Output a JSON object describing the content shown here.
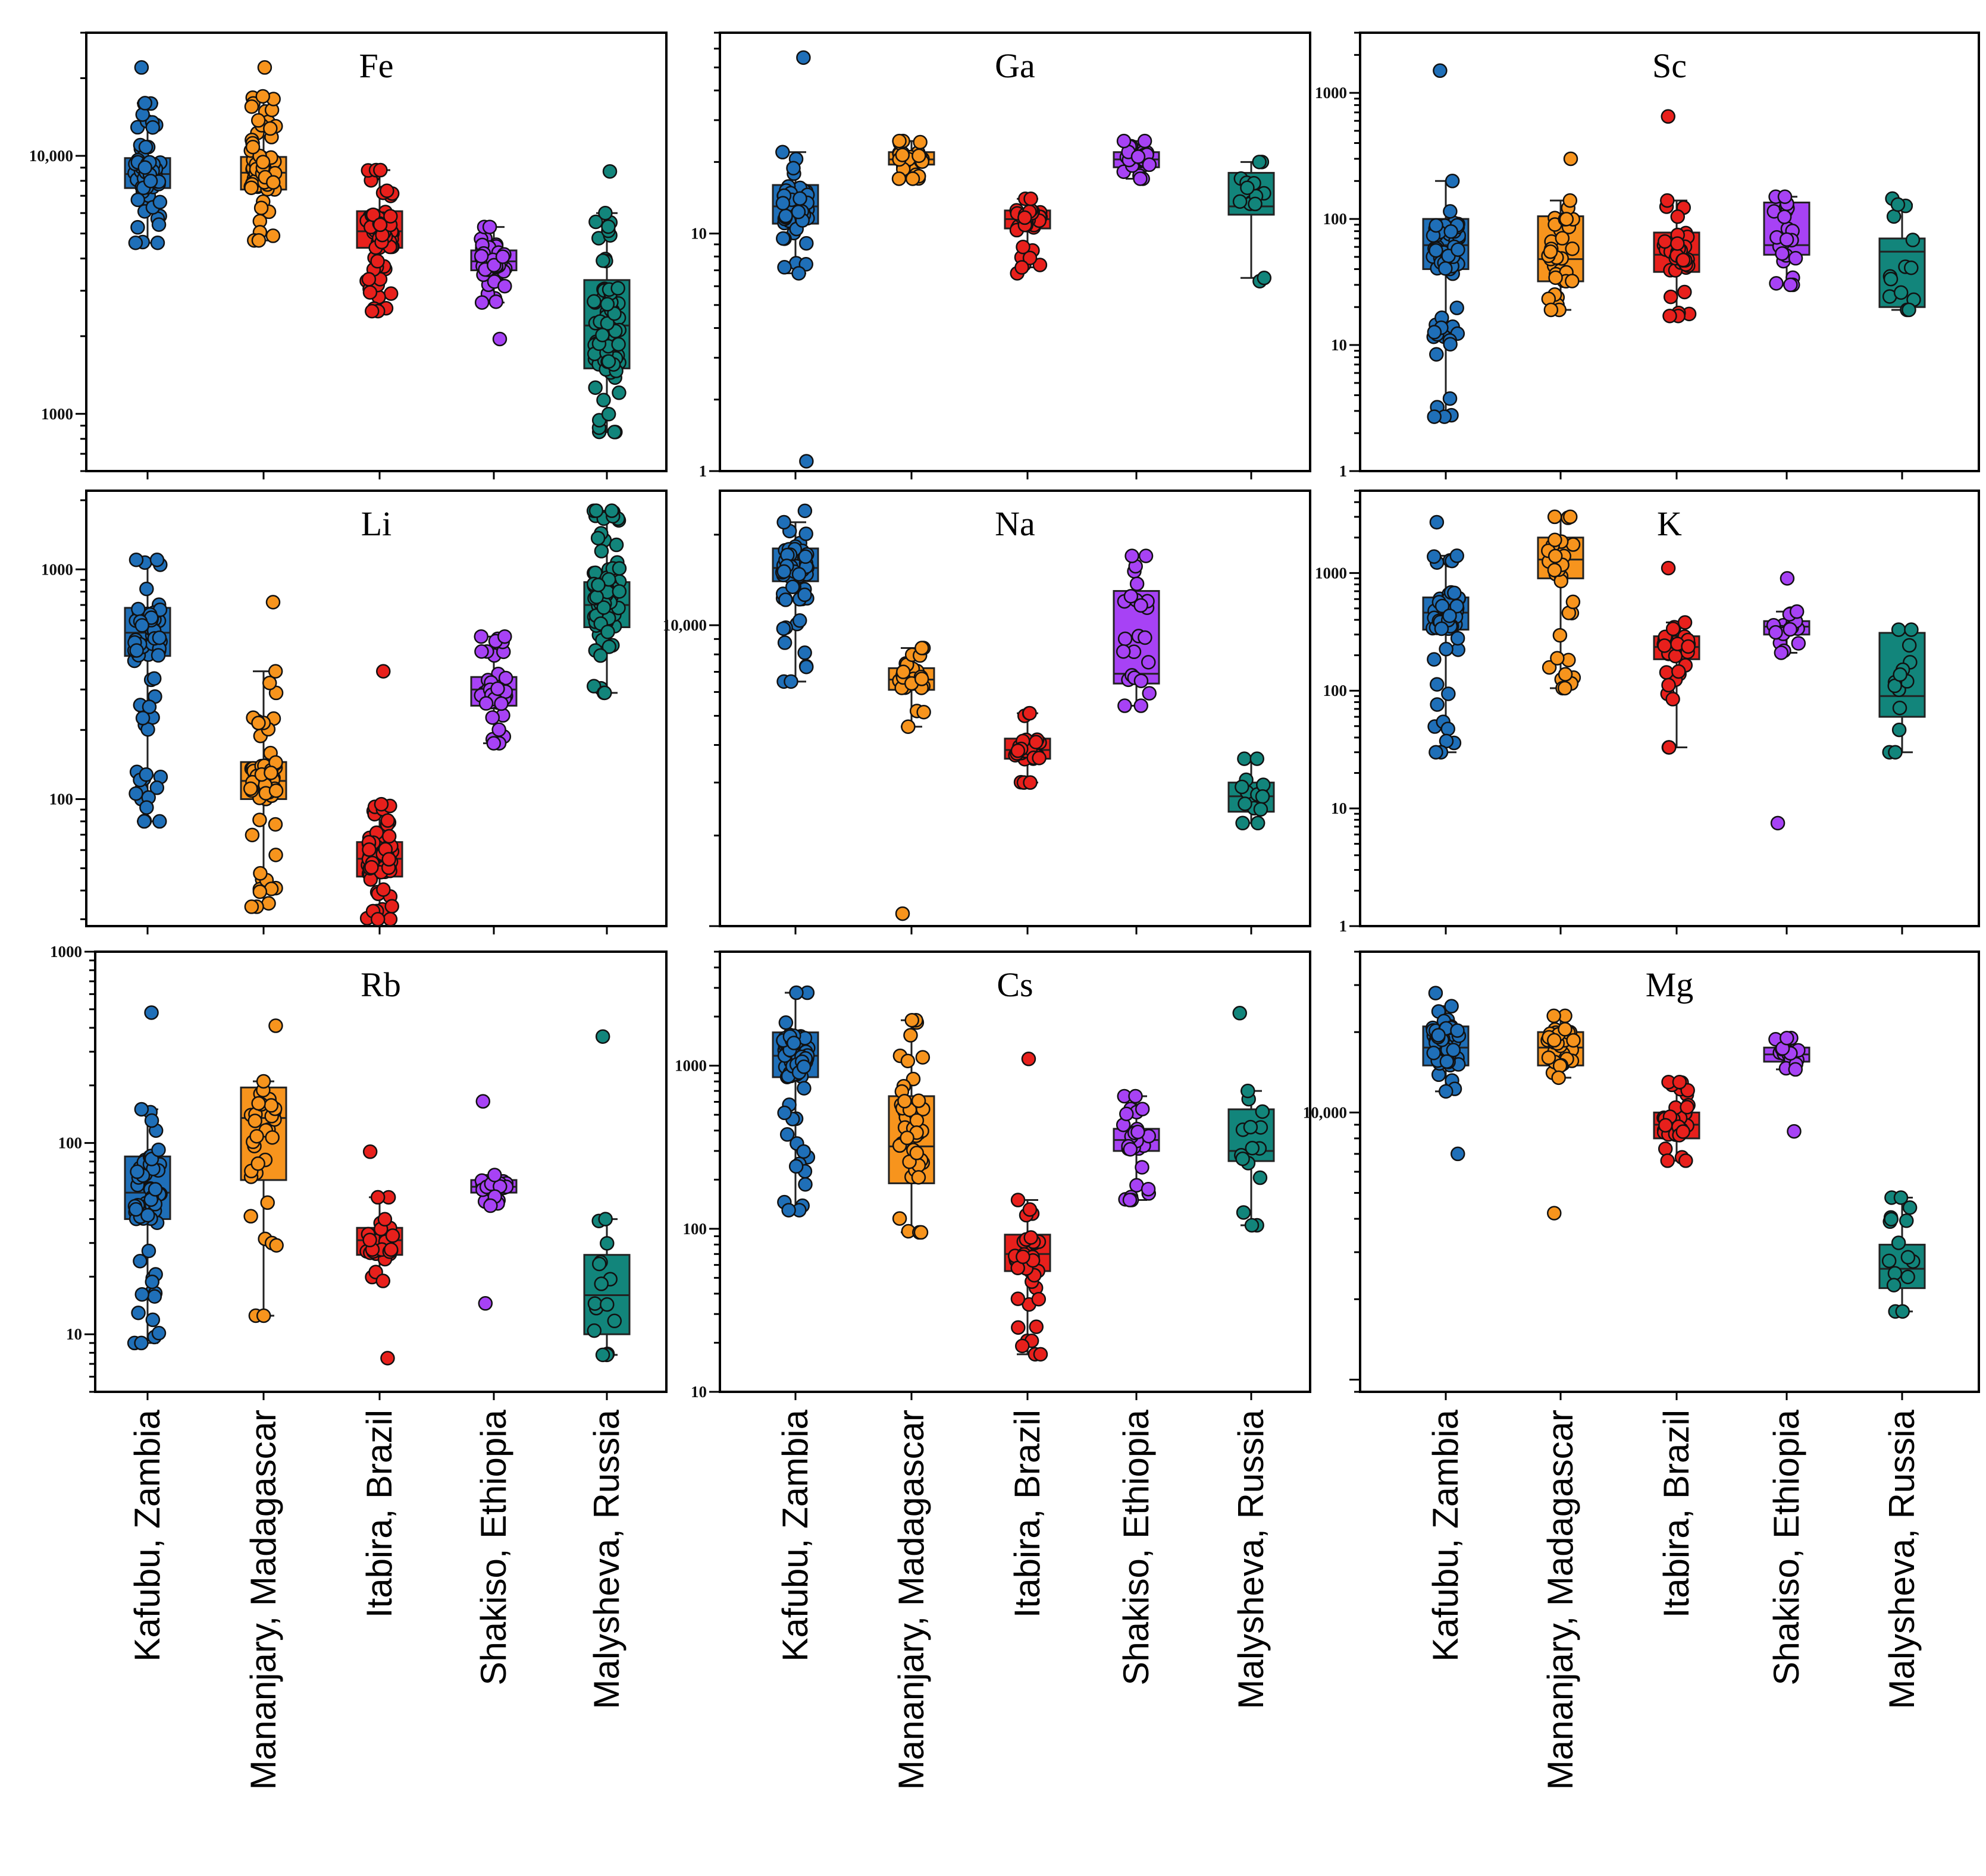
{
  "figure_title": "",
  "categories": [
    "Kafubu, Zambia",
    "Mananjary, Madagascar",
    "Itabira, Brazil",
    "Shakiso, Ethiopia",
    "Malysheva, Russia"
  ],
  "colors": {
    "Kafubu, Zambia": "#1f6fb8",
    "Mananjary, Madagascar": "#f7941d",
    "Itabira, Brazil": "#e8201c",
    "Shakiso, Ethiopia": "#a742f5",
    "Malysheva, Russia": "#12857b"
  },
  "chart_data": [
    {
      "type": "box",
      "title": "Fe",
      "yscale": "log",
      "ylim": [
        600,
        30000
      ],
      "ticks": [
        {
          "value": 1000,
          "label": "1000"
        },
        {
          "value": 10000,
          "label": "10,000"
        }
      ],
      "boxes": [
        {
          "category": "Kafubu, Zambia",
          "q1": 7500,
          "median": 8500,
          "q3": 9800,
          "whisker_low": 4600,
          "whisker_high": 16000,
          "min": 4600,
          "max": 22000,
          "n_points": 70
        },
        {
          "category": "Mananjary, Madagascar",
          "q1": 7400,
          "median": 8600,
          "q3": 9900,
          "whisker_low": 4700,
          "whisker_high": 17000,
          "min": 4700,
          "max": 22000,
          "n_points": 70
        },
        {
          "category": "Itabira, Brazil",
          "q1": 4400,
          "median": 5100,
          "q3": 6100,
          "whisker_low": 2500,
          "whisker_high": 8800,
          "min": 2500,
          "max": 8800,
          "n_points": 70
        },
        {
          "category": "Shakiso, Ethiopia",
          "q1": 3600,
          "median": 3900,
          "q3": 4300,
          "whisker_low": 2700,
          "whisker_high": 5300,
          "min": 1950,
          "max": 5300,
          "n_points": 40
        },
        {
          "category": "Malysheva, Russia",
          "q1": 1500,
          "median": 2200,
          "q3": 3300,
          "whisker_low": 850,
          "whisker_high": 6000,
          "min": 850,
          "max": 8700,
          "n_points": 80
        }
      ]
    },
    {
      "type": "box",
      "title": "Ga",
      "yscale": "log",
      "ylim": [
        1,
        70
      ],
      "ticks": [
        {
          "value": 1,
          "label": "1"
        },
        {
          "value": 10,
          "label": "10"
        }
      ],
      "boxes": [
        {
          "category": "Kafubu, Zambia",
          "q1": 11,
          "median": 13,
          "q3": 16,
          "whisker_low": 6.8,
          "whisker_high": 22,
          "min": 1.1,
          "max": 55,
          "n_points": 50
        },
        {
          "category": "Mananjary, Madagascar",
          "q1": 19.5,
          "median": 20.5,
          "q3": 22,
          "whisker_low": 17,
          "whisker_high": 24.5,
          "min": 17,
          "max": 24.5,
          "n_points": 25
        },
        {
          "category": "Itabira, Brazil",
          "q1": 10.5,
          "median": 11.5,
          "q3": 12.5,
          "whisker_low": 7.2,
          "whisker_high": 14,
          "min": 6.8,
          "max": 14,
          "n_points": 30
        },
        {
          "category": "Shakiso, Ethiopia",
          "q1": 19,
          "median": 20.5,
          "q3": 22,
          "whisker_low": 17,
          "whisker_high": 24.5,
          "min": 17,
          "max": 24.5,
          "n_points": 25
        },
        {
          "category": "Malysheva, Russia",
          "q1": 12,
          "median": 13,
          "q3": 18,
          "whisker_low": 6.5,
          "whisker_high": 20,
          "min": 6.3,
          "max": 20,
          "n_points": 10
        }
      ]
    },
    {
      "type": "box",
      "title": "Sc",
      "yscale": "log",
      "ylim": [
        1,
        3000
      ],
      "ticks": [
        {
          "value": 1,
          "label": "1"
        },
        {
          "value": 10,
          "label": "10"
        },
        {
          "value": 100,
          "label": "100"
        },
        {
          "value": 1000,
          "label": "1000"
        }
      ],
      "boxes": [
        {
          "category": "Kafubu, Zambia",
          "q1": 40,
          "median": 62,
          "q3": 100,
          "whisker_low": 2.7,
          "whisker_high": 200,
          "min": 2.7,
          "max": 1500,
          "n_points": 60
        },
        {
          "category": "Mananjary, Madagascar",
          "q1": 32,
          "median": 48,
          "q3": 105,
          "whisker_low": 19,
          "whisker_high": 140,
          "min": 19,
          "max": 300,
          "n_points": 30
        },
        {
          "category": "Itabira, Brazil",
          "q1": 38,
          "median": 52,
          "q3": 78,
          "whisker_low": 17,
          "whisker_high": 140,
          "min": 17,
          "max": 650,
          "n_points": 35
        },
        {
          "category": "Shakiso, Ethiopia",
          "q1": 52,
          "median": 62,
          "q3": 135,
          "whisker_low": 30,
          "whisker_high": 150,
          "min": 30,
          "max": 150,
          "n_points": 20
        },
        {
          "category": "Malysheva, Russia",
          "q1": 20,
          "median": 55,
          "q3": 70,
          "whisker_low": 19,
          "whisker_high": 130,
          "min": 19,
          "max": 145,
          "n_points": 10
        }
      ]
    },
    {
      "type": "box",
      "title": "Li",
      "yscale": "log",
      "ylim": [
        28,
        2200
      ],
      "ticks": [
        {
          "value": 100,
          "label": "100"
        },
        {
          "value": 1000,
          "label": "1000"
        }
      ],
      "boxes": [
        {
          "category": "Kafubu, Zambia",
          "q1": 420,
          "median": 530,
          "q3": 680,
          "whisker_low": 80,
          "whisker_high": 1100,
          "min": 80,
          "max": 1100,
          "n_points": 70
        },
        {
          "category": "Mananjary, Madagascar",
          "q1": 100,
          "median": 120,
          "q3": 145,
          "whisker_low": 34,
          "whisker_high": 360,
          "min": 34,
          "max": 720,
          "n_points": 60
        },
        {
          "category": "Itabira, Brazil",
          "q1": 46,
          "median": 55,
          "q3": 65,
          "whisker_low": 30,
          "whisker_high": 95,
          "min": 30,
          "max": 360,
          "n_points": 60
        },
        {
          "category": "Shakiso, Ethiopia",
          "q1": 255,
          "median": 300,
          "q3": 340,
          "whisker_low": 175,
          "whisker_high": 510,
          "min": 175,
          "max": 510,
          "n_points": 40
        },
        {
          "category": "Malysheva, Russia",
          "q1": 560,
          "median": 700,
          "q3": 880,
          "whisker_low": 290,
          "whisker_high": 1800,
          "min": 290,
          "max": 1800,
          "n_points": 80
        }
      ]
    },
    {
      "type": "box",
      "title": "Na",
      "yscale": "log",
      "ylim": [
        1000,
        28000
      ],
      "ticks": [
        {
          "value": 10000,
          "label": "10,000"
        }
      ],
      "boxes": [
        {
          "category": "Kafubu, Zambia",
          "q1": 14000,
          "median": 15500,
          "q3": 18000,
          "whisker_low": 6500,
          "whisker_high": 22000,
          "min": 6500,
          "max": 24000,
          "n_points": 60
        },
        {
          "category": "Mananjary, Madagascar",
          "q1": 6100,
          "median": 6600,
          "q3": 7200,
          "whisker_low": 4600,
          "whisker_high": 8400,
          "min": 1100,
          "max": 8400,
          "n_points": 25
        },
        {
          "category": "Itabira, Brazil",
          "q1": 3600,
          "median": 3850,
          "q3": 4200,
          "whisker_low": 3000,
          "whisker_high": 5100,
          "min": 3000,
          "max": 5100,
          "n_points": 30
        },
        {
          "category": "Shakiso, Ethiopia",
          "q1": 6400,
          "median": 6900,
          "q3": 13000,
          "whisker_low": 5400,
          "whisker_high": 17000,
          "min": 5400,
          "max": 17000,
          "n_points": 20
        },
        {
          "category": "Malysheva, Russia",
          "q1": 2400,
          "median": 2700,
          "q3": 3000,
          "whisker_low": 2200,
          "whisker_high": 3600,
          "min": 2200,
          "max": 3600,
          "n_points": 10
        }
      ]
    },
    {
      "type": "box",
      "title": "K",
      "yscale": "log",
      "ylim": [
        1,
        5000
      ],
      "ticks": [
        {
          "value": 1,
          "label": "1"
        },
        {
          "value": 10,
          "label": "10"
        },
        {
          "value": 100,
          "label": "100"
        },
        {
          "value": 1000,
          "label": "1000"
        }
      ],
      "boxes": [
        {
          "category": "Kafubu, Zambia",
          "q1": 330,
          "median": 460,
          "q3": 620,
          "whisker_low": 30,
          "whisker_high": 1400,
          "min": 30,
          "max": 2700,
          "n_points": 60
        },
        {
          "category": "Mananjary, Madagascar",
          "q1": 900,
          "median": 1300,
          "q3": 2000,
          "whisker_low": 105,
          "whisker_high": 3000,
          "min": 105,
          "max": 3000,
          "n_points": 30
        },
        {
          "category": "Itabira, Brazil",
          "q1": 185,
          "median": 235,
          "q3": 290,
          "whisker_low": 33,
          "whisker_high": 380,
          "min": 33,
          "max": 1100,
          "n_points": 30
        },
        {
          "category": "Shakiso, Ethiopia",
          "q1": 300,
          "median": 350,
          "q3": 390,
          "whisker_low": 210,
          "whisker_high": 470,
          "min": 7.5,
          "max": 900,
          "n_points": 20
        },
        {
          "category": "Malysheva, Russia",
          "q1": 60,
          "median": 90,
          "q3": 310,
          "whisker_low": 30,
          "whisker_high": 330,
          "min": 30,
          "max": 330,
          "n_points": 10
        }
      ]
    },
    {
      "type": "box",
      "title": "Rb",
      "yscale": "log",
      "ylim": [
        5,
        1000
      ],
      "ticks": [
        {
          "value": 10,
          "label": "10"
        },
        {
          "value": 100,
          "label": "100"
        },
        {
          "value": 1000,
          "label": "1000"
        }
      ],
      "boxes": [
        {
          "category": "Kafubu, Zambia",
          "q1": 40,
          "median": 55,
          "q3": 85,
          "whisker_low": 9,
          "whisker_high": 150,
          "min": 9,
          "max": 480,
          "n_points": 60
        },
        {
          "category": "Mananjary, Madagascar",
          "q1": 64,
          "median": 135,
          "q3": 195,
          "whisker_low": 12.5,
          "whisker_high": 210,
          "min": 12.5,
          "max": 410,
          "n_points": 30
        },
        {
          "category": "Itabira, Brazil",
          "q1": 26,
          "median": 31,
          "q3": 36,
          "whisker_low": 19,
          "whisker_high": 52,
          "min": 7.5,
          "max": 90,
          "n_points": 30
        },
        {
          "category": "Shakiso, Ethiopia",
          "q1": 55,
          "median": 59,
          "q3": 64,
          "whisker_low": 47,
          "whisker_high": 68,
          "min": 14.5,
          "max": 165,
          "n_points": 20
        },
        {
          "category": "Malysheva, Russia",
          "q1": 10,
          "median": 16,
          "q3": 26,
          "whisker_low": 7.8,
          "whisker_high": 40,
          "min": 7.8,
          "max": 360,
          "n_points": 12
        }
      ]
    },
    {
      "type": "box",
      "title": "Cs",
      "yscale": "log",
      "ylim": [
        10,
        5000
      ],
      "ticks": [
        {
          "value": 10,
          "label": "10"
        },
        {
          "value": 100,
          "label": "100"
        },
        {
          "value": 1000,
          "label": "1000"
        }
      ],
      "boxes": [
        {
          "category": "Kafubu, Zambia",
          "q1": 850,
          "median": 1150,
          "q3": 1600,
          "whisker_low": 130,
          "whisker_high": 2800,
          "min": 130,
          "max": 2800,
          "n_points": 70
        },
        {
          "category": "Mananjary, Madagascar",
          "q1": 190,
          "median": 320,
          "q3": 650,
          "whisker_low": 95,
          "whisker_high": 1900,
          "min": 95,
          "max": 1900,
          "n_points": 40
        },
        {
          "category": "Itabira, Brazil",
          "q1": 55,
          "median": 70,
          "q3": 92,
          "whisker_low": 17,
          "whisker_high": 150,
          "min": 17,
          "max": 1100,
          "n_points": 35
        },
        {
          "category": "Shakiso, Ethiopia",
          "q1": 300,
          "median": 350,
          "q3": 410,
          "whisker_low": 150,
          "whisker_high": 650,
          "min": 150,
          "max": 650,
          "n_points": 25
        },
        {
          "category": "Malysheva, Russia",
          "q1": 260,
          "median": 300,
          "q3": 540,
          "whisker_low": 105,
          "whisker_high": 700,
          "min": 105,
          "max": 2100,
          "n_points": 12
        }
      ]
    },
    {
      "type": "box",
      "title": "Mg",
      "yscale": "log",
      "ylim": [
        900,
        40000
      ],
      "ticks": [
        {
          "value": 10000,
          "label": "10,000"
        }
      ],
      "boxes": [
        {
          "category": "Kafubu, Zambia",
          "q1": 15000,
          "median": 17500,
          "q3": 21000,
          "whisker_low": 12000,
          "whisker_high": 25000,
          "min": 7000,
          "max": 28000,
          "n_points": 50
        },
        {
          "category": "Mananjary, Madagascar",
          "q1": 15000,
          "median": 17500,
          "q3": 20000,
          "whisker_low": 13500,
          "whisker_high": 23000,
          "min": 4200,
          "max": 23000,
          "n_points": 30
        },
        {
          "category": "Itabira, Brazil",
          "q1": 8000,
          "median": 9000,
          "q3": 10000,
          "whisker_low": 6600,
          "whisker_high": 13000,
          "min": 6600,
          "max": 13000,
          "n_points": 35
        },
        {
          "category": "Shakiso, Ethiopia",
          "q1": 15500,
          "median": 16500,
          "q3": 17500,
          "whisker_low": 14500,
          "whisker_high": 19000,
          "min": 8500,
          "max": 19000,
          "n_points": 15
        },
        {
          "category": "Malysheva, Russia",
          "q1": 2200,
          "median": 2600,
          "q3": 3200,
          "whisker_low": 1800,
          "whisker_high": 4800,
          "min": 1800,
          "max": 4800,
          "n_points": 12
        }
      ]
    }
  ]
}
